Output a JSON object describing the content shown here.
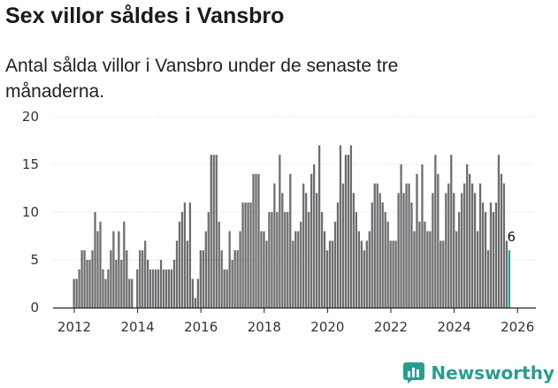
{
  "header": {
    "title": "Sex villor såldes i Vansbro",
    "subtitle": "Antal sålda villor i Vansbro under de senaste tre månaderna."
  },
  "brand": {
    "name": "Newsworthy",
    "color": "#2a9d8f"
  },
  "chart_data": {
    "type": "bar",
    "title": "Sex villor såldes i Vansbro",
    "xlabel": "",
    "ylabel": "",
    "ylim": [
      0,
      20
    ],
    "yticks": [
      "0",
      "5",
      "10",
      "15",
      "20"
    ],
    "xticks": [
      "2012",
      "2014",
      "2016",
      "2018",
      "2020",
      "2022",
      "2024",
      "2026"
    ],
    "bar_color": "#6d6c70",
    "highlight_color": "#2a9d8f",
    "start": "2012-01",
    "annotation": "6",
    "values": [
      3,
      3,
      4,
      6,
      6,
      5,
      5,
      6,
      10,
      8,
      9,
      4,
      3,
      4,
      6,
      8,
      5,
      8,
      5,
      9,
      6,
      3,
      3,
      0,
      4,
      6,
      6,
      7,
      5,
      4,
      4,
      4,
      4,
      5,
      4,
      4,
      4,
      4,
      5,
      7,
      9,
      10,
      11,
      7,
      11,
      3,
      1,
      3,
      6,
      6,
      8,
      10,
      16,
      16,
      16,
      9,
      6,
      4,
      4,
      8,
      5,
      6,
      6,
      8,
      11,
      11,
      11,
      11,
      14,
      14,
      14,
      8,
      8,
      7,
      10,
      10,
      13,
      10,
      16,
      12,
      10,
      10,
      14,
      7,
      8,
      8,
      9,
      13,
      12,
      10,
      14,
      15,
      12,
      17,
      10,
      8,
      6,
      7,
      7,
      9,
      11,
      17,
      13,
      16,
      16,
      17,
      12,
      10,
      8,
      7,
      6,
      7,
      8,
      11,
      13,
      13,
      12,
      11,
      10,
      9,
      7,
      7,
      7,
      12,
      15,
      12,
      13,
      13,
      11,
      8,
      14,
      9,
      15,
      9,
      8,
      8,
      12,
      16,
      14,
      7,
      7,
      12,
      13,
      16,
      12,
      8,
      10,
      12,
      13,
      15,
      14,
      13,
      12,
      8,
      13,
      11,
      10,
      6,
      11,
      10,
      11,
      16,
      14,
      13,
      7,
      6
    ]
  }
}
